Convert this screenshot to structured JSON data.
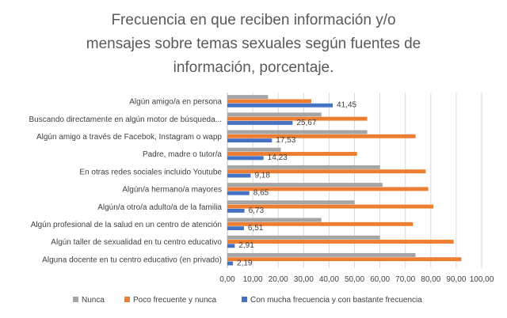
{
  "chart_data": {
    "type": "bar",
    "orientation": "horizontal",
    "title_lines": [
      "Frecuencia en que reciben información y/o",
      "mensajes sobre temas sexuales según fuentes de",
      "información, porcentaje."
    ],
    "categories": [
      "Algún amigo/a en persona",
      "Buscando directamente en algún motor de búsqueda...",
      "Algún amigo a través de Facebok, Instagram o wapp",
      "Padre, madre o tutor/a",
      "En otras redes sociales incluido Youtube",
      "Algún/a hermano/a mayores",
      "Algún/a otro/a adulto/a de la familia",
      "Algún profesional de la salud en un centro de atención",
      "Algún taller de sexualidad en tu centro educativo",
      "Alguna docente en tu centro educativo (en privado)"
    ],
    "series": [
      {
        "name": "Nunca",
        "color": "#a5a5a5",
        "values": [
          16,
          37,
          55,
          21,
          60,
          61,
          50,
          37,
          60,
          74
        ]
      },
      {
        "name": "Poco frecuente y nunca",
        "color": "#ed7d31",
        "values": [
          33,
          55,
          74,
          51,
          78,
          79,
          81,
          73,
          89,
          92
        ]
      },
      {
        "name": "Con mucha frecuencia y con bastante frecuencia",
        "color": "#4472c4",
        "values": [
          41.45,
          25.67,
          17.53,
          14.23,
          9.18,
          8.65,
          6.73,
          6.51,
          2.91,
          2.19
        ],
        "data_labels": [
          "41,45",
          "25,67",
          "17,53",
          "14,23",
          "9,18",
          "8,65",
          "6,73",
          "6,51",
          "2,91",
          "2,19"
        ]
      }
    ],
    "xlim": [
      0,
      100
    ],
    "x_ticks": [
      0,
      10,
      20,
      30,
      40,
      50,
      60,
      70,
      80,
      90,
      100
    ],
    "x_tick_labels": [
      "0,00",
      "10,00",
      "20,00",
      "30,00",
      "40,00",
      "50,00",
      "60,00",
      "70,00",
      "80,00",
      "90,00",
      "100,00"
    ],
    "grid": true,
    "legend_position": "bottom",
    "xlabel": "",
    "ylabel": ""
  }
}
